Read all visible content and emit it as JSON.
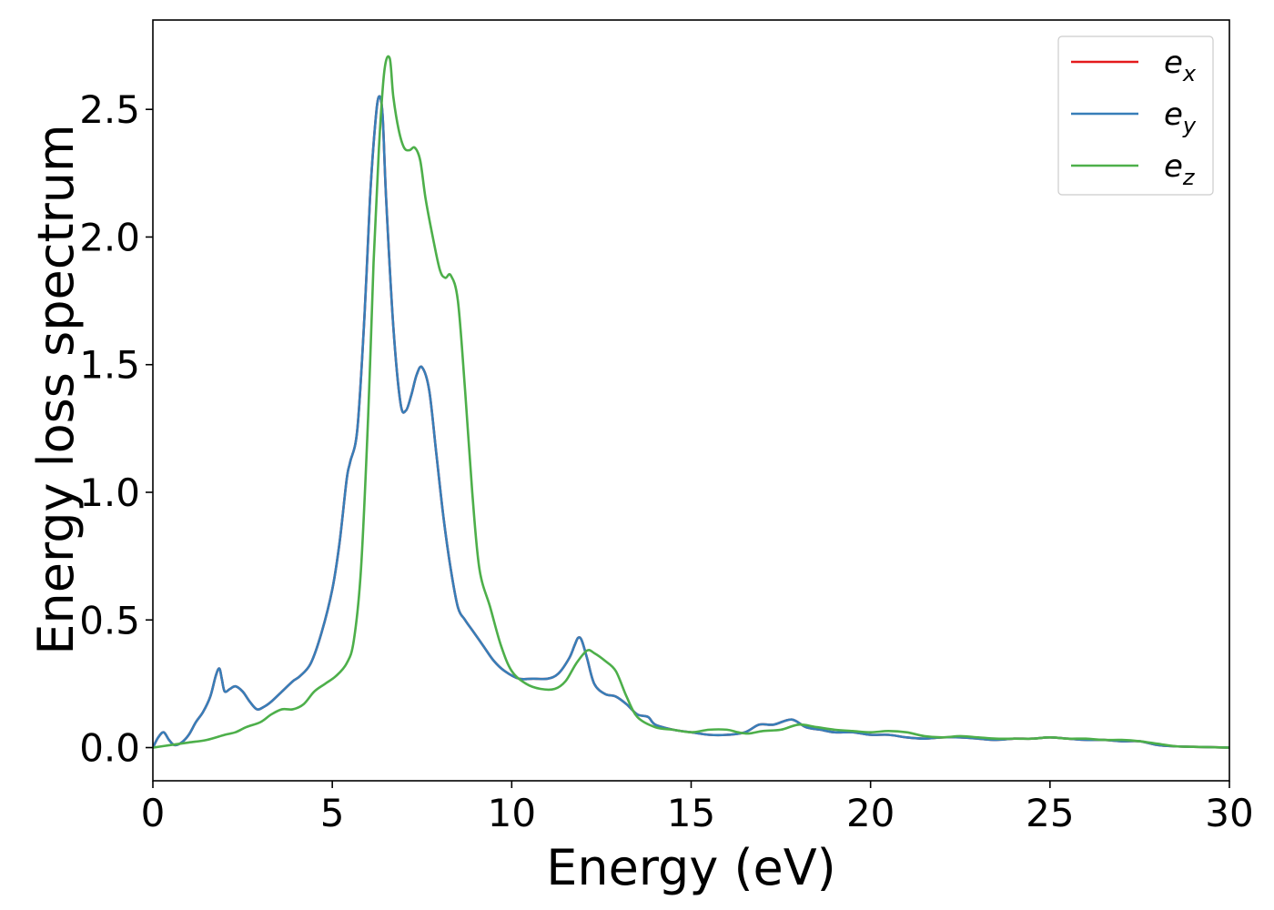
{
  "chart_data": {
    "type": "line",
    "title": "",
    "xlabel": "Energy (eV)",
    "ylabel": "Energy loss spectrum",
    "xlim": [
      0,
      30
    ],
    "ylim": [
      -0.13,
      2.85
    ],
    "xticks": [
      0,
      5,
      10,
      15,
      20,
      25,
      30
    ],
    "xtick_labels": [
      "0",
      "5",
      "10",
      "15",
      "20",
      "25",
      "30"
    ],
    "yticks": [
      0.0,
      0.5,
      1.0,
      1.5,
      2.0,
      2.5
    ],
    "ytick_labels": [
      "0.0",
      "0.5",
      "1.0",
      "1.5",
      "2.0",
      "2.5"
    ],
    "grid": false,
    "legend_position": "top-right",
    "series": [
      {
        "name": "e_x",
        "label_base": "e",
        "label_sub": "x",
        "color": "#e41a1c",
        "x": [
          0,
          0.15,
          0.3,
          0.45,
          0.6,
          0.8,
          1.0,
          1.2,
          1.4,
          1.6,
          1.75,
          1.85,
          1.92,
          2.0,
          2.15,
          2.3,
          2.5,
          2.7,
          2.9,
          3.1,
          3.3,
          3.6,
          3.9,
          4.1,
          4.4,
          4.7,
          5.0,
          5.2,
          5.4,
          5.5,
          5.7,
          5.9,
          6.05,
          6.2,
          6.3,
          6.4,
          6.5,
          6.7,
          6.9,
          7.05,
          7.2,
          7.35,
          7.5,
          7.7,
          7.9,
          8.1,
          8.3,
          8.5,
          8.7,
          8.9,
          9.2,
          9.5,
          9.8,
          10.2,
          10.6,
          11.0,
          11.3,
          11.6,
          11.75,
          11.85,
          11.95,
          12.1,
          12.3,
          12.6,
          12.9,
          13.2,
          13.5,
          13.8,
          14.0,
          14.5,
          15.0,
          15.5,
          16.0,
          16.5,
          16.9,
          17.3,
          17.8,
          18.2,
          18.6,
          19.0,
          19.5,
          20.0,
          20.5,
          21.0,
          21.5,
          22.0,
          22.5,
          23.0,
          23.5,
          24.0,
          24.5,
          25.0,
          25.5,
          26.0,
          26.5,
          27.0,
          27.5,
          28.0,
          28.5,
          29.0,
          30.0
        ],
        "y": [
          0.0,
          0.04,
          0.06,
          0.03,
          0.01,
          0.02,
          0.05,
          0.1,
          0.14,
          0.2,
          0.28,
          0.31,
          0.27,
          0.22,
          0.23,
          0.24,
          0.22,
          0.18,
          0.15,
          0.16,
          0.18,
          0.22,
          0.26,
          0.28,
          0.33,
          0.45,
          0.62,
          0.8,
          1.05,
          1.12,
          1.25,
          1.7,
          2.15,
          2.45,
          2.55,
          2.48,
          2.15,
          1.65,
          1.35,
          1.32,
          1.38,
          1.46,
          1.49,
          1.4,
          1.15,
          0.9,
          0.7,
          0.55,
          0.5,
          0.46,
          0.4,
          0.34,
          0.3,
          0.27,
          0.27,
          0.27,
          0.29,
          0.35,
          0.4,
          0.43,
          0.42,
          0.35,
          0.25,
          0.21,
          0.2,
          0.17,
          0.13,
          0.12,
          0.09,
          0.07,
          0.06,
          0.05,
          0.05,
          0.06,
          0.09,
          0.09,
          0.11,
          0.08,
          0.07,
          0.06,
          0.06,
          0.05,
          0.05,
          0.04,
          0.035,
          0.04,
          0.04,
          0.035,
          0.03,
          0.035,
          0.035,
          0.04,
          0.035,
          0.03,
          0.03,
          0.025,
          0.025,
          0.01,
          0.005,
          0.003,
          0.0
        ]
      },
      {
        "name": "e_y",
        "label_base": "e",
        "label_sub": "y",
        "color": "#377eb8",
        "x": [
          0,
          0.15,
          0.3,
          0.45,
          0.6,
          0.8,
          1.0,
          1.2,
          1.4,
          1.6,
          1.75,
          1.85,
          1.92,
          2.0,
          2.15,
          2.3,
          2.5,
          2.7,
          2.9,
          3.1,
          3.3,
          3.6,
          3.9,
          4.1,
          4.4,
          4.7,
          5.0,
          5.2,
          5.4,
          5.5,
          5.7,
          5.9,
          6.05,
          6.2,
          6.3,
          6.4,
          6.5,
          6.7,
          6.9,
          7.05,
          7.2,
          7.35,
          7.5,
          7.7,
          7.9,
          8.1,
          8.3,
          8.5,
          8.7,
          8.9,
          9.2,
          9.5,
          9.8,
          10.2,
          10.6,
          11.0,
          11.3,
          11.6,
          11.75,
          11.85,
          11.95,
          12.1,
          12.3,
          12.6,
          12.9,
          13.2,
          13.5,
          13.8,
          14.0,
          14.5,
          15.0,
          15.5,
          16.0,
          16.5,
          16.9,
          17.3,
          17.8,
          18.2,
          18.6,
          19.0,
          19.5,
          20.0,
          20.5,
          21.0,
          21.5,
          22.0,
          22.5,
          23.0,
          23.5,
          24.0,
          24.5,
          25.0,
          25.5,
          26.0,
          26.5,
          27.0,
          27.5,
          28.0,
          28.5,
          29.0,
          30.0
        ],
        "y": [
          0.0,
          0.04,
          0.06,
          0.03,
          0.01,
          0.02,
          0.05,
          0.1,
          0.14,
          0.2,
          0.28,
          0.31,
          0.27,
          0.22,
          0.23,
          0.24,
          0.22,
          0.18,
          0.15,
          0.16,
          0.18,
          0.22,
          0.26,
          0.28,
          0.33,
          0.45,
          0.62,
          0.8,
          1.05,
          1.12,
          1.25,
          1.7,
          2.15,
          2.45,
          2.55,
          2.48,
          2.15,
          1.65,
          1.35,
          1.32,
          1.38,
          1.46,
          1.49,
          1.4,
          1.15,
          0.9,
          0.7,
          0.55,
          0.5,
          0.46,
          0.4,
          0.34,
          0.3,
          0.27,
          0.27,
          0.27,
          0.29,
          0.35,
          0.4,
          0.43,
          0.42,
          0.35,
          0.25,
          0.21,
          0.2,
          0.17,
          0.13,
          0.12,
          0.09,
          0.07,
          0.06,
          0.05,
          0.05,
          0.06,
          0.09,
          0.09,
          0.11,
          0.08,
          0.07,
          0.06,
          0.06,
          0.05,
          0.05,
          0.04,
          0.035,
          0.04,
          0.04,
          0.035,
          0.03,
          0.035,
          0.035,
          0.04,
          0.035,
          0.03,
          0.03,
          0.025,
          0.025,
          0.01,
          0.005,
          0.003,
          0.0
        ]
      },
      {
        "name": "e_z",
        "label_base": "e",
        "label_sub": "z",
        "color": "#4daf4a",
        "x": [
          0,
          0.5,
          1.0,
          1.5,
          2.0,
          2.3,
          2.6,
          3.0,
          3.3,
          3.6,
          3.9,
          4.2,
          4.5,
          4.8,
          5.1,
          5.4,
          5.6,
          5.8,
          6.0,
          6.15,
          6.3,
          6.45,
          6.6,
          6.7,
          6.85,
          7.0,
          7.15,
          7.3,
          7.45,
          7.6,
          7.8,
          8.0,
          8.15,
          8.3,
          8.5,
          8.7,
          8.9,
          9.1,
          9.4,
          9.7,
          10.0,
          10.4,
          10.8,
          11.2,
          11.5,
          11.8,
          12.1,
          12.3,
          12.6,
          12.9,
          13.2,
          13.5,
          14.0,
          14.5,
          15.0,
          15.5,
          16.0,
          16.3,
          16.6,
          17.0,
          17.5,
          18.0,
          18.5,
          19.0,
          19.5,
          20.0,
          20.5,
          21.0,
          21.5,
          22.0,
          22.5,
          23.0,
          23.5,
          24.0,
          24.5,
          25.0,
          25.5,
          26.0,
          26.5,
          27.0,
          27.5,
          28.0,
          28.5,
          29.0,
          30.0
        ],
        "y": [
          0.0,
          0.01,
          0.02,
          0.03,
          0.05,
          0.06,
          0.08,
          0.1,
          0.13,
          0.15,
          0.15,
          0.17,
          0.22,
          0.25,
          0.28,
          0.33,
          0.42,
          0.7,
          1.3,
          1.9,
          2.35,
          2.65,
          2.7,
          2.55,
          2.42,
          2.35,
          2.34,
          2.35,
          2.3,
          2.15,
          2.0,
          1.87,
          1.84,
          1.85,
          1.75,
          1.4,
          1.0,
          0.7,
          0.55,
          0.4,
          0.3,
          0.25,
          0.23,
          0.23,
          0.26,
          0.33,
          0.38,
          0.37,
          0.34,
          0.3,
          0.2,
          0.12,
          0.08,
          0.07,
          0.06,
          0.07,
          0.07,
          0.06,
          0.055,
          0.065,
          0.07,
          0.09,
          0.08,
          0.07,
          0.065,
          0.06,
          0.065,
          0.06,
          0.045,
          0.04,
          0.045,
          0.04,
          0.035,
          0.035,
          0.035,
          0.04,
          0.035,
          0.035,
          0.03,
          0.03,
          0.025,
          0.015,
          0.005,
          0.003,
          0.0
        ]
      }
    ]
  }
}
